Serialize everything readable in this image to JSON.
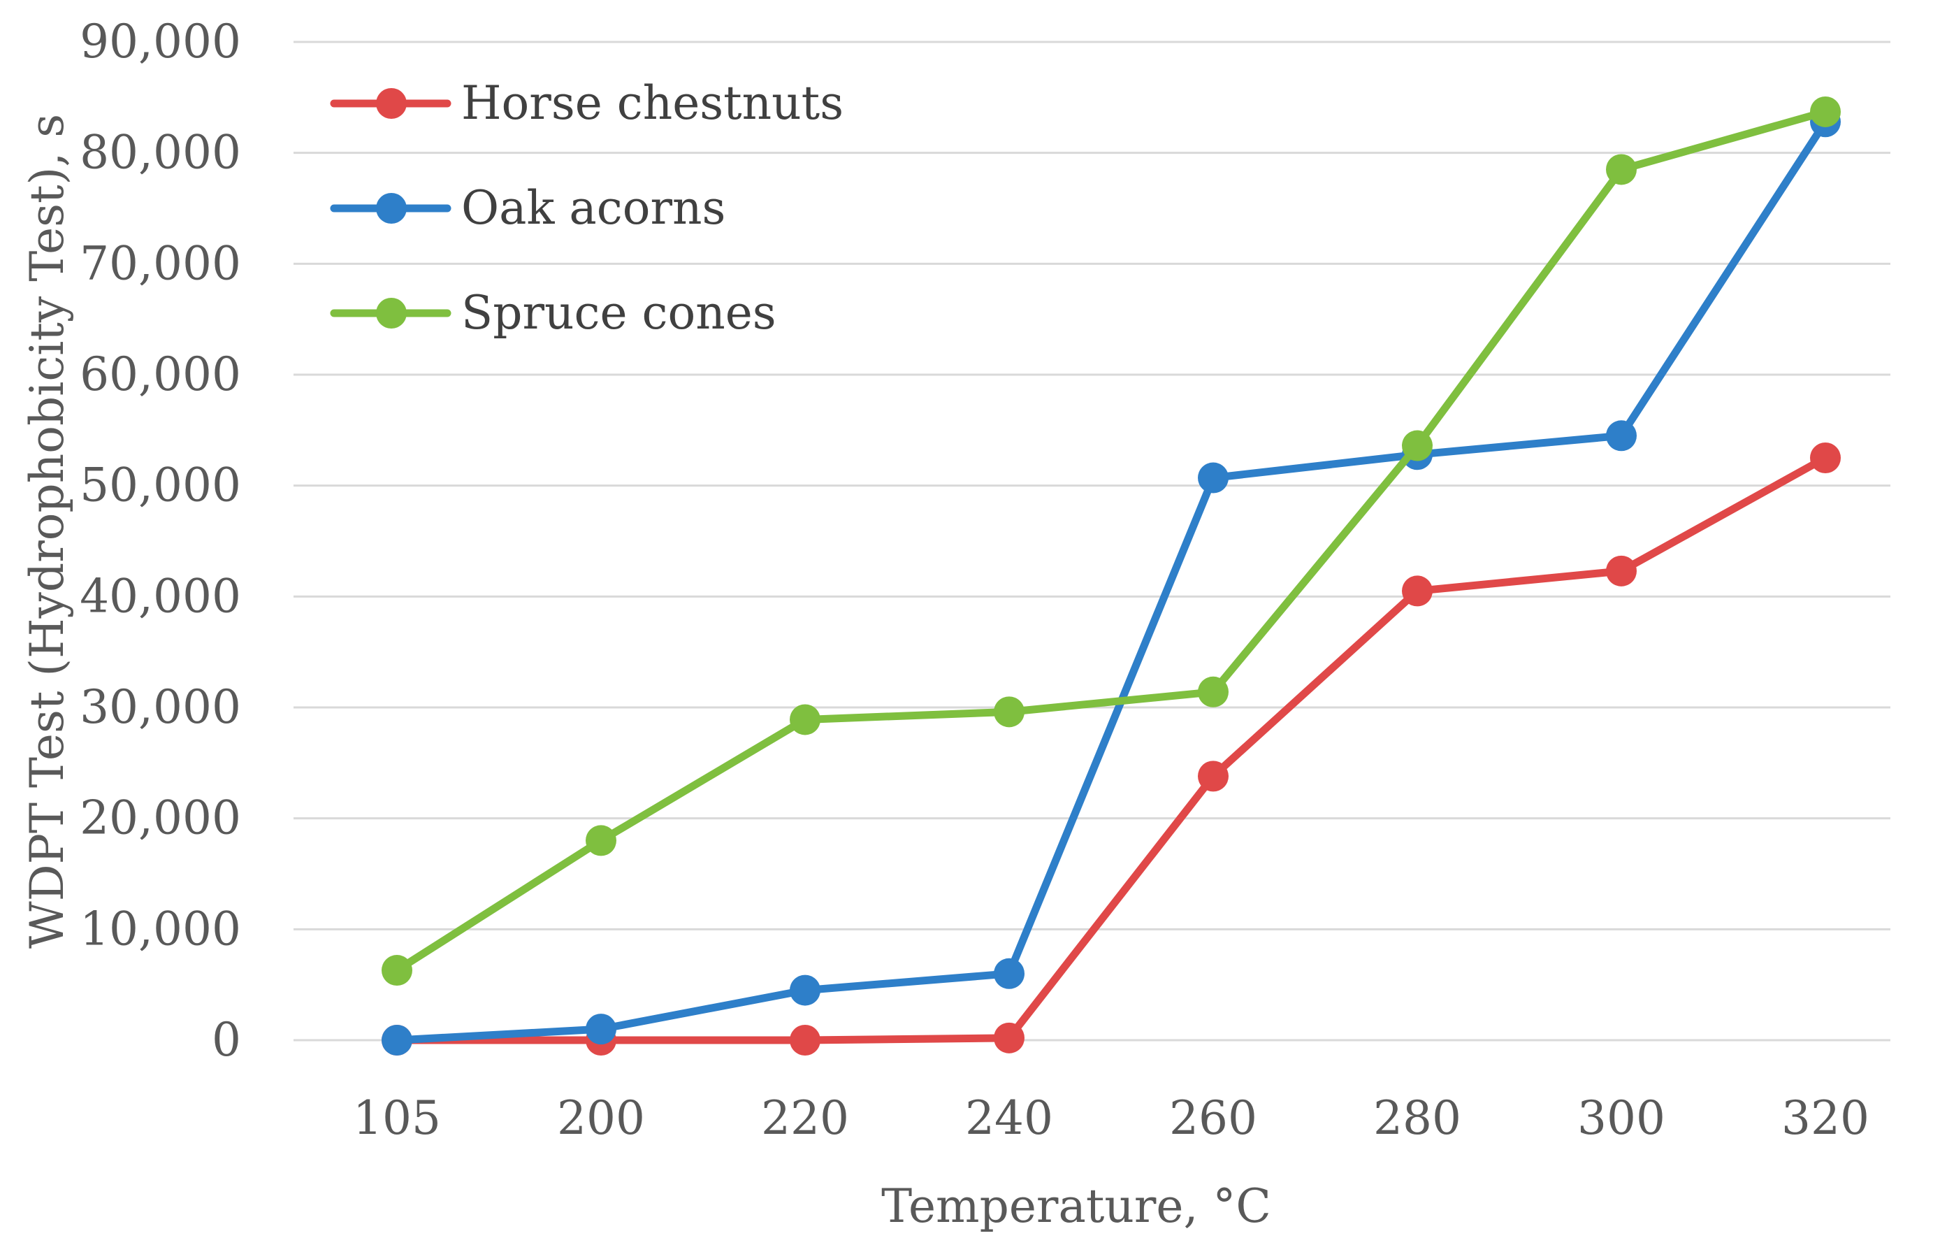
{
  "chart_data": {
    "type": "line",
    "xlabel": "Temperature, °C",
    "ylabel": "WDPT Test (Hydrophobicity Test), s",
    "categories": [
      "105",
      "200",
      "220",
      "240",
      "260",
      "280",
      "300",
      "320"
    ],
    "ylim": [
      0,
      90000
    ],
    "yticks": [
      "0",
      "10,000",
      "20,000",
      "30,000",
      "40,000",
      "50,000",
      "60,000",
      "70,000",
      "80,000",
      "90,000"
    ],
    "grid": true,
    "legend_position": "top-left",
    "series": [
      {
        "name": "Horse chestnuts",
        "color": "#e04848",
        "values": [
          0,
          0,
          0,
          200,
          23800,
          40500,
          42300,
          52500
        ]
      },
      {
        "name": "Oak acorns",
        "color": "#2e7fc9",
        "values": [
          0,
          1000,
          4500,
          6000,
          50700,
          52800,
          54500,
          82800
        ]
      },
      {
        "name": "Spruce cones",
        "color": "#7fbf3f",
        "values": [
          6300,
          18000,
          28900,
          29600,
          31400,
          53600,
          78500,
          83700
        ]
      }
    ]
  }
}
